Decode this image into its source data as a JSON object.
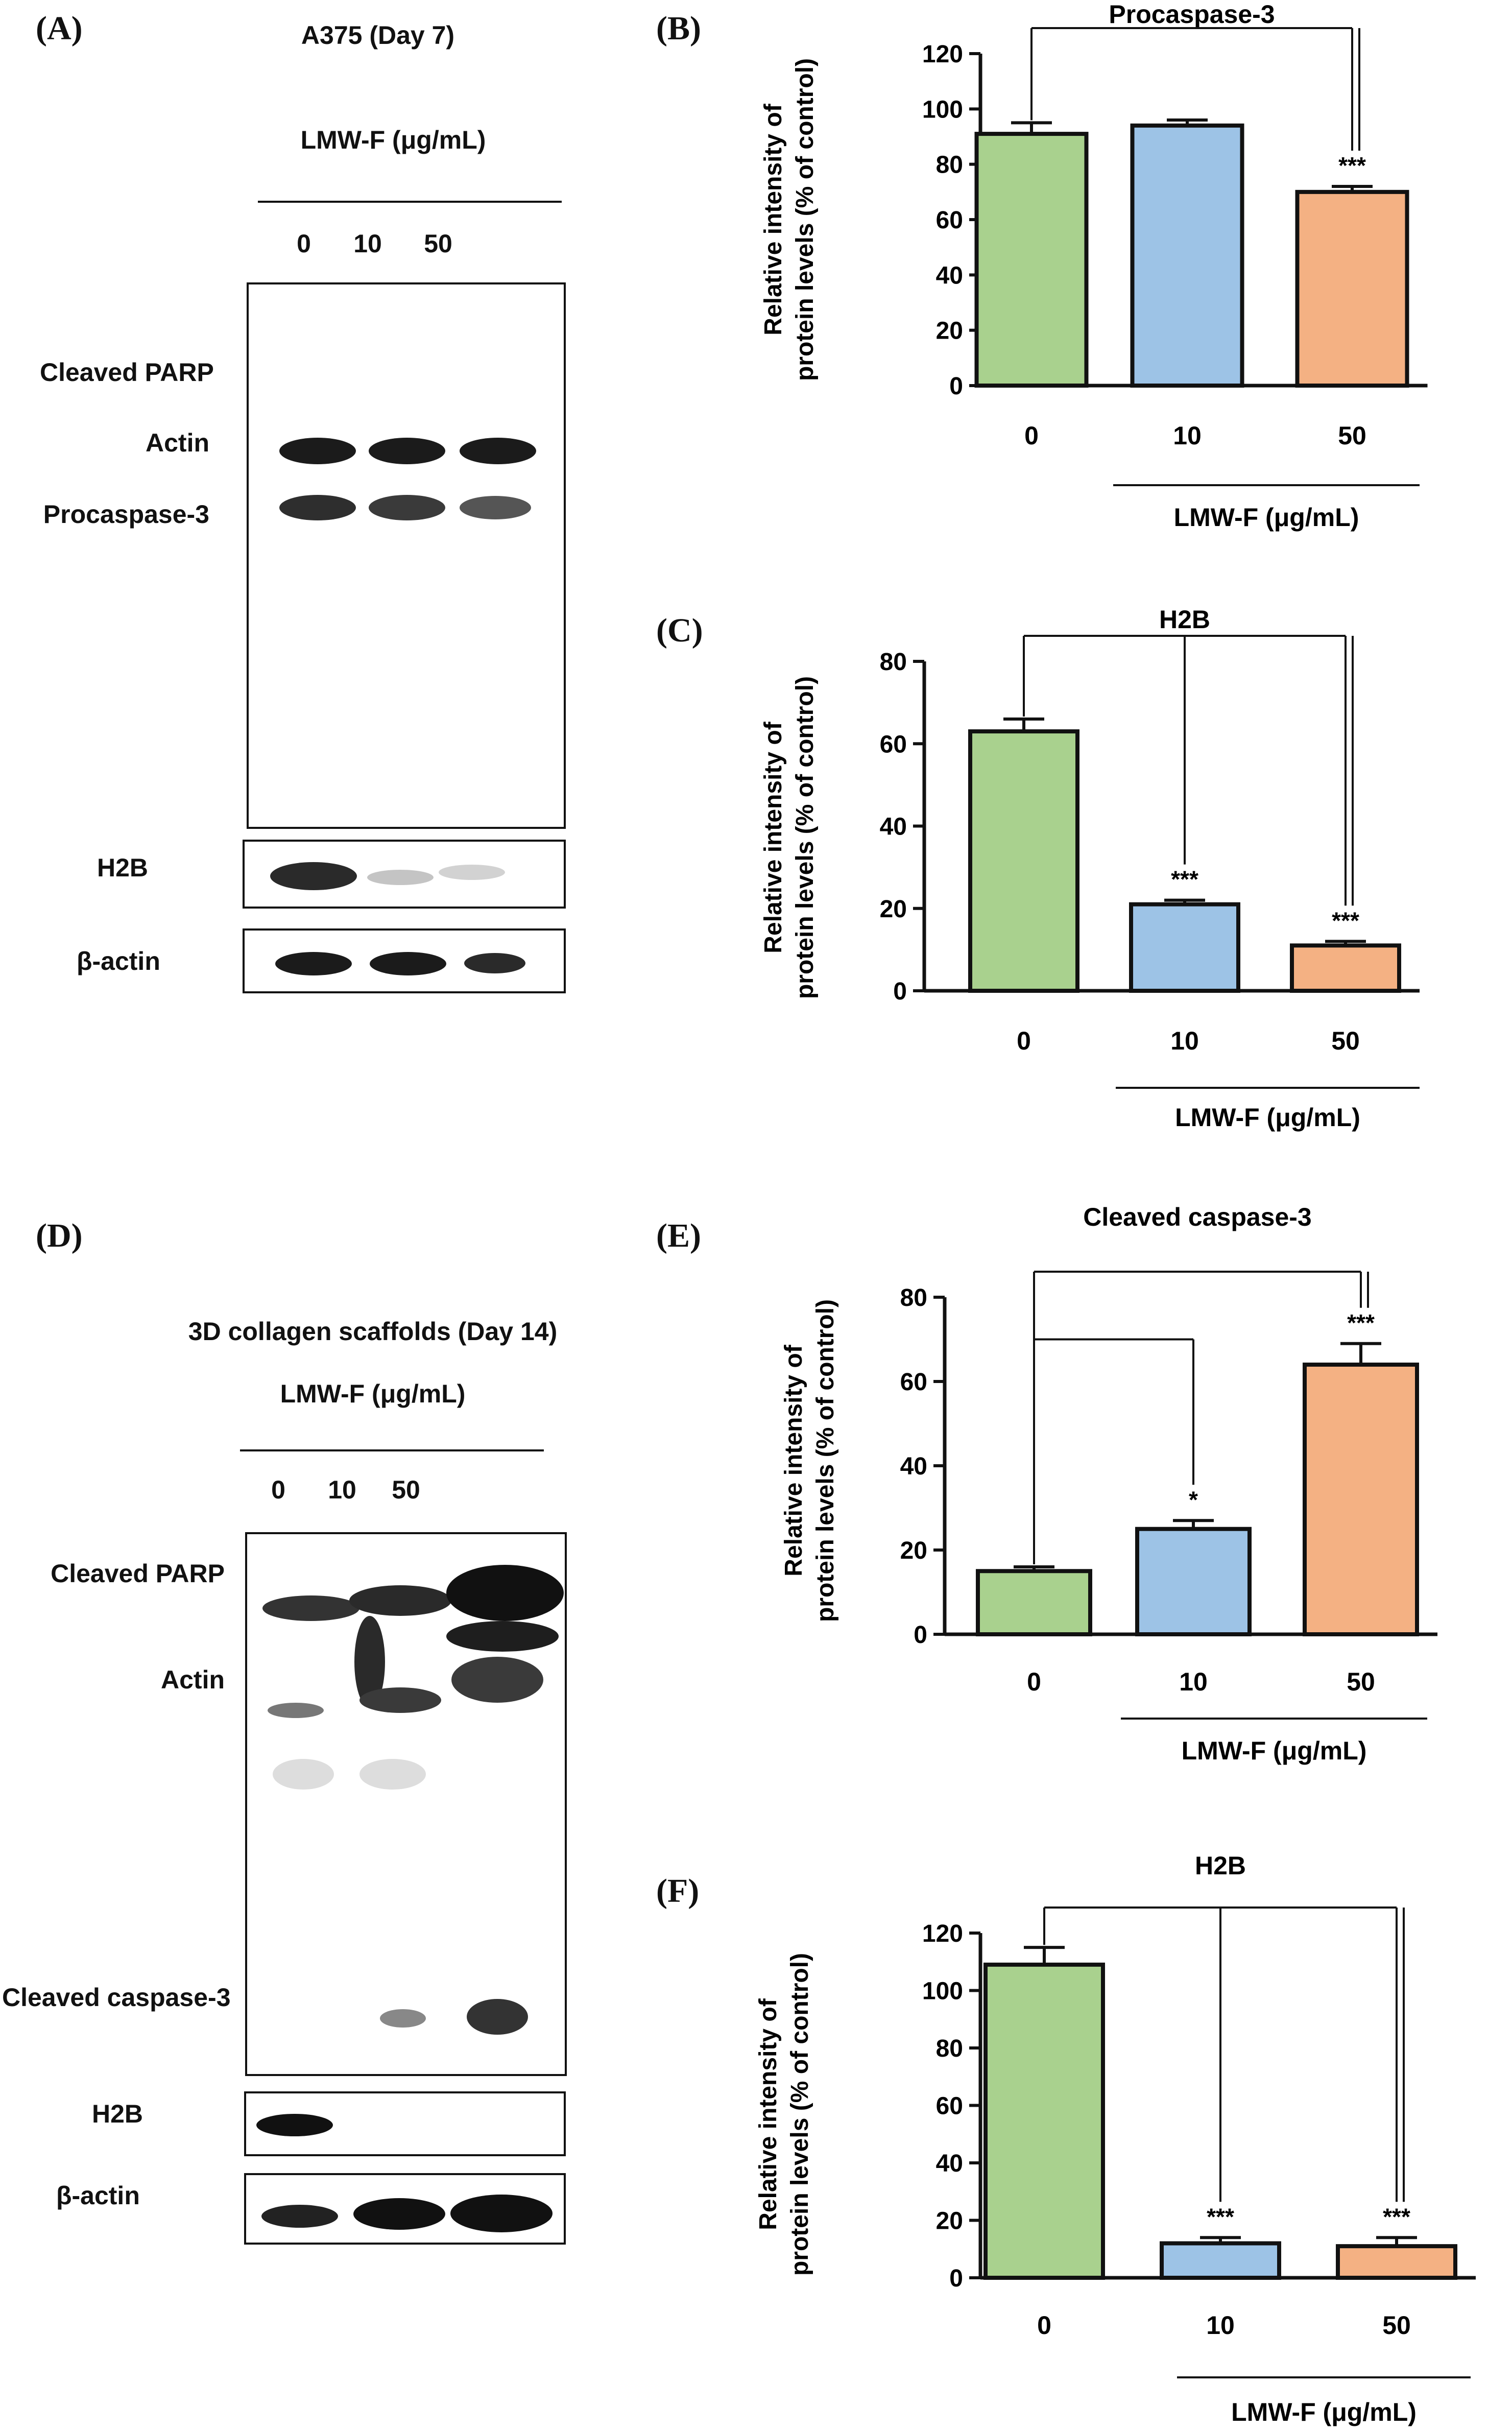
{
  "panel_a": {
    "label": "(A)",
    "title": "A375 (Day 7)",
    "treatment": "LMW-F (μg/mL)",
    "lanes": [
      "0",
      "10",
      "50"
    ],
    "bands": [
      "Cleaved PARP",
      "Actin",
      "Procaspase-3"
    ],
    "h2b": "H2B",
    "beta_actin": "β-actin"
  },
  "panel_d": {
    "label": "(D)",
    "title": "3D collagen scaffolds (Day 14)",
    "treatment": "LMW-F (μg/mL)",
    "lanes": [
      "0",
      "10",
      "50"
    ],
    "bands": [
      "Cleaved PARP",
      "Actin",
      "Cleaved caspase-3"
    ],
    "h2b": "H2B",
    "beta_actin": "β-actin"
  },
  "colors": {
    "green": "#a9d18e",
    "blue": "#9dc3e6",
    "orange": "#f4b183",
    "stroke": "#111111"
  },
  "chart_data": [
    {
      "id": "B",
      "panel_label": "(B)",
      "type": "bar",
      "title": "Procaspase-3",
      "ylabel": [
        "Relative intensity of",
        "protein levels (% of control)"
      ],
      "xlabel": "LMW-F (μg/mL)",
      "categories": [
        "0",
        "10",
        "50"
      ],
      "values": [
        91,
        94,
        70
      ],
      "errors": [
        4,
        2,
        2
      ],
      "ylim": [
        0,
        120
      ],
      "yticks": [
        0,
        20,
        40,
        60,
        80,
        100,
        120
      ],
      "significance": [
        "",
        "",
        "***"
      ],
      "brackets": [
        {
          "from": 0,
          "to": 2
        }
      ]
    },
    {
      "id": "C",
      "panel_label": "(C)",
      "type": "bar",
      "title": "H2B",
      "ylabel": [
        "Relative intensity of",
        "protein levels (% of control)"
      ],
      "xlabel": "LMW-F (μg/mL)",
      "categories": [
        "0",
        "10",
        "50"
      ],
      "values": [
        63,
        21,
        11
      ],
      "errors": [
        3,
        1,
        1
      ],
      "ylim": [
        0,
        80
      ],
      "yticks": [
        0,
        20,
        40,
        60,
        80
      ],
      "significance": [
        "",
        "***",
        "***"
      ],
      "brackets": [
        {
          "from": 0,
          "to": 1
        },
        {
          "from": 0,
          "to": 2
        }
      ]
    },
    {
      "id": "E",
      "panel_label": "(E)",
      "type": "bar",
      "title": "Cleaved caspase-3",
      "ylabel": [
        "Relative intensity of",
        "protein levels (% of control)"
      ],
      "xlabel": "LMW-F (μg/mL)",
      "categories": [
        "0",
        "10",
        "50"
      ],
      "values": [
        15,
        25,
        64
      ],
      "errors": [
        1,
        2,
        5
      ],
      "ylim": [
        0,
        80
      ],
      "yticks": [
        0,
        20,
        40,
        60,
        80
      ],
      "significance": [
        "",
        "*",
        "***"
      ],
      "brackets": [
        {
          "from": 0,
          "to": 2
        },
        {
          "from": 0,
          "to": 1,
          "level": 70
        }
      ]
    },
    {
      "id": "F",
      "panel_label": "(F)",
      "type": "bar",
      "title": "H2B",
      "ylabel": [
        "Relative intensity of",
        "protein levels (% of control)"
      ],
      "xlabel": "LMW-F (μg/mL)",
      "categories": [
        "0",
        "10",
        "50"
      ],
      "values": [
        109,
        12,
        11
      ],
      "errors": [
        6,
        2,
        3
      ],
      "ylim": [
        0,
        120
      ],
      "yticks": [
        0,
        20,
        40,
        60,
        80,
        100,
        120
      ],
      "significance": [
        "",
        "***",
        "***"
      ],
      "brackets": [
        {
          "from": 0,
          "to": 1
        },
        {
          "from": 0,
          "to": 2
        }
      ]
    }
  ]
}
